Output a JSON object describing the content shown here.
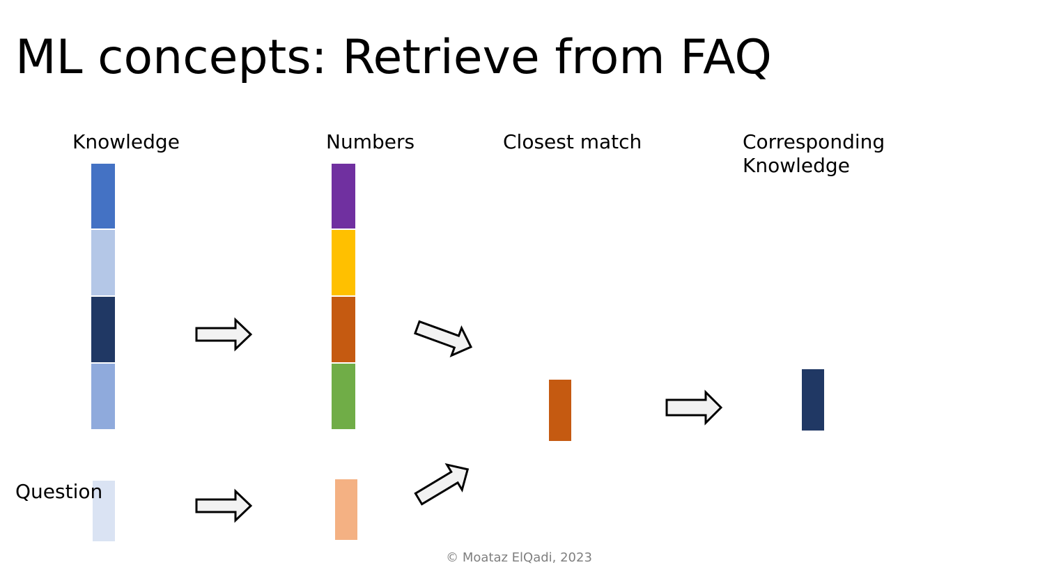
{
  "title": "ML concepts: Retrieve from FAQ",
  "labels": {
    "knowledge": "Knowledge",
    "numbers": "Numbers",
    "closest_match": "Closest match",
    "corresponding_knowledge": "Corresponding\nKnowledge",
    "question": "Question"
  },
  "footer": "© Moataz ElQadi, 2023",
  "colors": {
    "knowledge_stack": [
      "#4472c4",
      "#b4c7e7",
      "#203864",
      "#8faadc"
    ],
    "numbers_stack": [
      "#7030a0",
      "#ffc000",
      "#c55a11",
      "#70ad47"
    ],
    "question_block": "#dae3f3",
    "question_number": "#f4b183",
    "closest_match": "#c55a11",
    "corresponding_knowledge": "#203864",
    "arrow_fill": "#f2f2f2",
    "arrow_stroke": "#000000"
  }
}
